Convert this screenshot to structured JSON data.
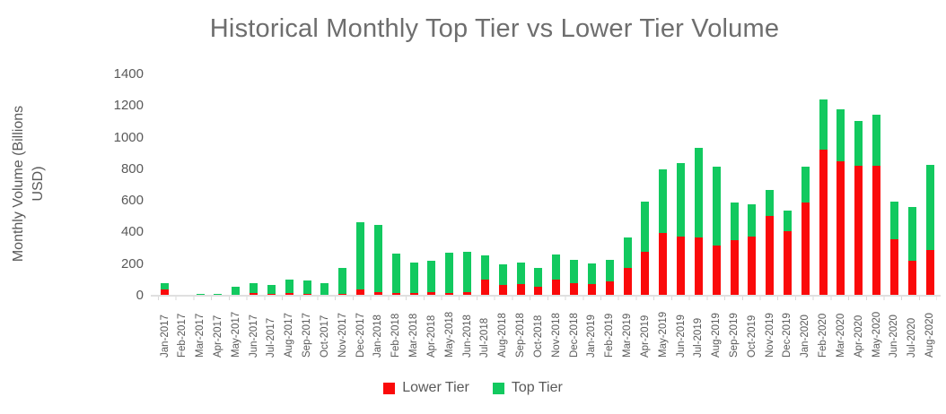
{
  "title": "Historical Monthly Top Tier vs Lower Tier Volume",
  "colors": {
    "lower_tier": "#fa0a0a",
    "top_tier": "#12c95f",
    "title_text": "#6e6e6e",
    "axis_text": "#595959",
    "axis_line": "#e0e0e0"
  },
  "y_axis": {
    "label_line1": "Monthly Volume (Billions",
    "label_line2": "USD)",
    "ticks": [
      0,
      200,
      400,
      600,
      800,
      1000,
      1200,
      1400
    ]
  },
  "legend": {
    "items": [
      {
        "label": "Lower Tier",
        "color": "#fa0a0a"
      },
      {
        "label": "Top Tier",
        "color": "#12c95f"
      }
    ]
  },
  "chart_data": {
    "type": "bar",
    "stacked": true,
    "title": "Historical Monthly Top Tier vs Lower Tier Volume",
    "xlabel": "",
    "ylabel": "Monthly Volume (Billions USD)",
    "ylim": [
      0,
      1400
    ],
    "ytick_step": 200,
    "grid": false,
    "legend_position": "bottom",
    "categories": [
      "Jan-2017",
      "Feb-2017",
      "Mar-2017",
      "Apr-2017",
      "May-2017",
      "Jun-2017",
      "Jul-2017",
      "Aug-2017",
      "Sep-2017",
      "Oct-2017",
      "Nov-2017",
      "Dec-2017",
      "Jan-2018",
      "Feb-2018",
      "Mar-2018",
      "Apr-2018",
      "May-2018",
      "Jun-2018",
      "Jul-2018",
      "Aug-2018",
      "Sep-2018",
      "Oct-2018",
      "Nov-2018",
      "Dec-2018",
      "Jan-2019",
      "Feb-2019",
      "Mar-2019",
      "Apr-2019",
      "May-2019",
      "Jun-2019",
      "Jul-2019",
      "Aug-2019",
      "Sep-2019",
      "Oct-2019",
      "Nov-2019",
      "Dec-2019",
      "Jan-2020",
      "Feb-2020",
      "Mar-2020",
      "Apr-2020",
      "May-2020",
      "Jun-2020",
      "Jul-2020",
      "Aug-2020"
    ],
    "series": [
      {
        "name": "Lower Tier",
        "color": "#fa0a0a",
        "values": [
          42,
          3,
          2,
          2,
          6,
          17,
          9,
          15,
          11,
          8,
          13,
          40,
          25,
          15,
          17,
          21,
          19,
          25,
          104,
          68,
          76,
          58,
          101,
          81,
          75,
          89,
          174,
          276,
          395,
          375,
          368,
          316,
          350,
          372,
          507,
          411,
          589,
          926,
          848,
          824,
          824,
          360,
          220,
          291
        ]
      },
      {
        "name": "Top Tier",
        "color": "#12c95f",
        "values": [
          38,
          3,
          8,
          8,
          49,
          65,
          57,
          88,
          86,
          72,
          165,
          425,
          425,
          252,
          195,
          201,
          251,
          252,
          150,
          130,
          136,
          116,
          160,
          146,
          127,
          140,
          196,
          322,
          404,
          464,
          569,
          502,
          241,
          205,
          161,
          130,
          229,
          314,
          333,
          282,
          322,
          238,
          341,
          536
        ]
      }
    ]
  }
}
